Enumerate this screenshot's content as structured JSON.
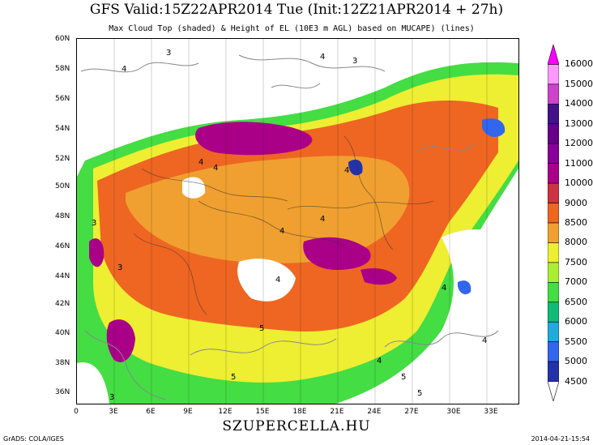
{
  "title": "GFS Valid:15Z22APR2014 Tue (Init:12Z21APR2014 + 27h)",
  "subtitle": "Max Cloud Top (shaded) & Height of EL (10E3 m AGL) based on MUCAPE) (lines)",
  "lat_labels": [
    "60N",
    "58N",
    "56N",
    "54N",
    "52N",
    "50N",
    "48N",
    "46N",
    "44N",
    "42N",
    "40N",
    "38N",
    "36N"
  ],
  "lon_labels": [
    "0",
    "3E",
    "6E",
    "9E",
    "12E",
    "15E",
    "18E",
    "21E",
    "24E",
    "27E",
    "30E",
    "33E"
  ],
  "colorbar": {
    "levels": [
      "16000",
      "15000",
      "14000",
      "13000",
      "12000",
      "11000",
      "10000",
      "9000",
      "8500",
      "8000",
      "7500",
      "7000",
      "6500",
      "6000",
      "5500",
      "5000",
      "4500"
    ],
    "colors": [
      "#ff00ff",
      "#ff99ff",
      "#cc44cc",
      "#441188",
      "#660088",
      "#880099",
      "#aa0088",
      "#cc3344",
      "#ee6622",
      "#f0a030",
      "#eeee33",
      "#aaee33",
      "#44dd44",
      "#11bb77",
      "#22aadd",
      "#3366ee",
      "#2233aa",
      "#ffffff"
    ]
  },
  "footer": {
    "site": "SZUPERCELLA.HU",
    "left": "GrADS: COLA/IGES",
    "right": "2014-04-21-15:54"
  },
  "contour_labels": [
    "4",
    "3",
    "4",
    "3",
    "4",
    "4",
    "5",
    "4",
    "3",
    "4",
    "4",
    "4",
    "5",
    "4",
    "5",
    "3",
    "4",
    "4",
    "3",
    "5"
  ]
}
